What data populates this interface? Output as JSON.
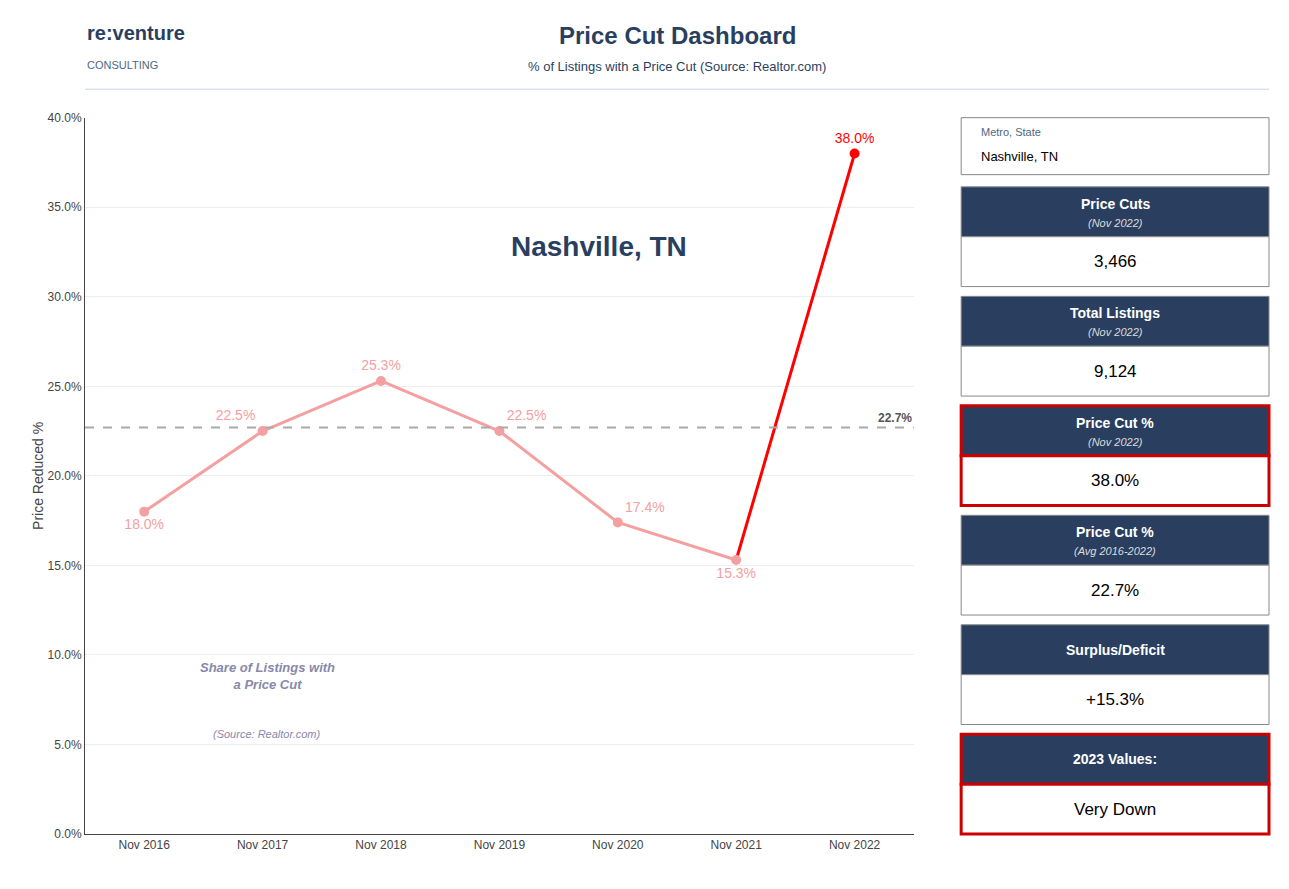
{
  "chart_data": {
    "type": "line",
    "title": "Price Cut Dashboard",
    "subtitle": "% of Listings with a Price Cut (Source: Realtor.com)",
    "logo": [
      "re:venture",
      "CONSULTING"
    ],
    "categories": [
      "Nov 2016",
      "Nov 2017",
      "Nov 2018",
      "Nov 2019",
      "Nov 2020",
      "Nov 2021",
      "Nov 2022"
    ],
    "values": [
      18.0,
      22.5,
      25.3,
      22.5,
      17.4,
      15.3,
      38.0
    ],
    "value_labels": [
      "18.0%",
      "22.5%",
      "25.3%",
      "22.5%",
      "17.4%",
      "15.3%",
      "38.0%"
    ],
    "data_labels": true,
    "colors": [
      "#f4a0a0",
      "#f4a0a0",
      "#f4a0a0",
      "#f4a0a0",
      "#f4a0a0",
      "#f4a0a0",
      "#ff0000"
    ],
    "ylabel": "Price Reduced %",
    "ylim": [
      0,
      40
    ],
    "yticks": [
      {
        "value": 0.0,
        "label": "0.0%"
      },
      {
        "value": 5.0,
        "label": "5.0%"
      },
      {
        "value": 10.0,
        "label": "10.0%"
      },
      {
        "value": 15.0,
        "label": "15.0%"
      },
      {
        "value": 20.0,
        "label": "20.0%"
      },
      {
        "value": 25.0,
        "label": "25.0%"
      },
      {
        "value": 30.0,
        "label": "30.0%"
      },
      {
        "value": 35.0,
        "label": "35.0%"
      },
      {
        "value": 40.0,
        "label": "40.0%"
      }
    ],
    "grid": true,
    "average": {
      "value": 22.7,
      "label": "22.7%",
      "color": "#aaaaaa"
    },
    "city_label": "Nashville, TN",
    "watermark": [
      "Share of Listings with",
      "a Price Cut",
      "(Source: Realtor.com)"
    ],
    "sidebar": {
      "metro_label": "Metro, State",
      "metro_value": "Nashville, TN",
      "metrics": [
        {
          "title": "Price Cuts",
          "subtitle": "(Nov 2022)",
          "value": "3,466"
        },
        {
          "title": "Total Listings",
          "subtitle": "(Nov 2022)",
          "value": "9,124"
        },
        {
          "title": "Price Cut %",
          "subtitle": "(Nov 2022)",
          "value": "38.0%",
          "color": "#cc0000"
        },
        {
          "title": "Price Cut %",
          "subtitle": "(Avg 2016-2022)",
          "value": "22.7%"
        },
        {
          "title": "Surplus/Deficit",
          "value": "+15.3%"
        },
        {
          "title": "2023 Values:",
          "value": "Very Down",
          "color": "#cc0000"
        }
      ]
    }
  }
}
